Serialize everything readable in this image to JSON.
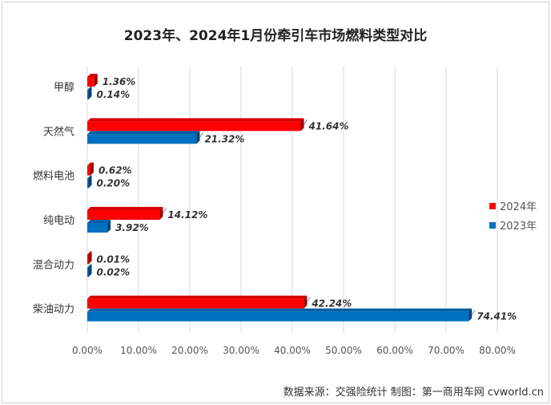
{
  "chart_data": {
    "type": "bar",
    "orientation": "horizontal",
    "title": "2023年、2024年1月份牵引车市场燃料类型对比",
    "categories": [
      "甲醇",
      "天然气",
      "燃料电池",
      "纯电动",
      "混合动力",
      "柴油动力"
    ],
    "series": [
      {
        "name": "2024年",
        "color": "#ff0000",
        "values": [
          1.36,
          41.64,
          0.62,
          14.12,
          0.01,
          42.24
        ],
        "labels": [
          "1.36%",
          "41.64%",
          "0.62%",
          "14.12%",
          "0.01%",
          "42.24%"
        ]
      },
      {
        "name": "2023年",
        "color": "#0070c0",
        "values": [
          0.14,
          21.32,
          0.2,
          3.92,
          0.02,
          74.41
        ],
        "labels": [
          "0.14%",
          "21.32%",
          "0.20%",
          "3.92%",
          "0.02%",
          "74.41%"
        ]
      }
    ],
    "xlim": [
      0,
      80
    ],
    "xticks": [
      0,
      10,
      20,
      30,
      40,
      50,
      60,
      70,
      80
    ],
    "xtick_labels": [
      "0.00%",
      "10.00%",
      "20.00%",
      "30.00%",
      "40.00%",
      "50.00%",
      "60.00%",
      "70.00%",
      "80.00%"
    ],
    "grid": true,
    "legend_position": "right"
  },
  "footer": "数据来源：交强险统计    制图：第一商用车网 cvworld.cn"
}
